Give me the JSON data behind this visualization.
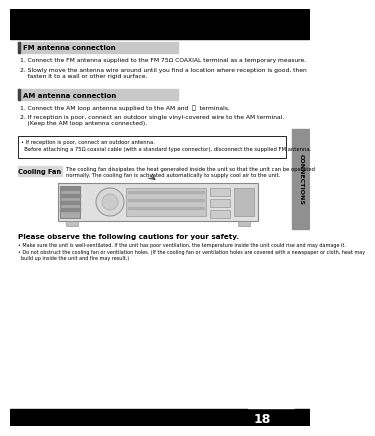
{
  "page_bg": "#ffffff",
  "right_tab_bg": "#909090",
  "right_tab_text": "CONNECTIONS",
  "right_tab_text_color": "#000000",
  "page_number": "18",
  "fm_section": {
    "header_text": "FM antenna connection",
    "header_bg": "#c8c8c8",
    "header_text_color": "#000000",
    "accent_color": "#404040",
    "item1": "1. Connect the FM antenna supplied to the FM 75Ω COAXIAL terminal as a temporary measure.",
    "item2a": "2. Slowly move the antenna wire around until you find a location where reception is good, then",
    "item2b": "    fasten it to a wall or other rigid surface."
  },
  "am_section": {
    "header_text": "AM antenna connection",
    "header_bg": "#c8c8c8",
    "header_text_color": "#000000",
    "accent_color": "#404040",
    "item1": "1. Connect the AM loop antenna supplied to the AM and  ⌵  terminals.",
    "item2a": "2. If reception is poor, connect an outdoor single vinyl-covered wire to the AM terminal.",
    "item2b": "    (Keep the AM loop antenna connected)."
  },
  "note_box": {
    "line1": "• If reception is poor, connect an outdoor antenna.",
    "line2": "  Before attaching a 75Ω coaxial cable (with a standard type connector), disconnect the supplied FM antenna.",
    "border_color": "#000000",
    "bg": "#ffffff"
  },
  "cooling_fan": {
    "label": "Cooling Fan",
    "label_bg": "#d8d8d8",
    "text1": "The cooling fan dissipates the heat generated inside the unit so that the unit can be operated",
    "text2": "normally. The cooling fan is activated automatically to supply cool air to the unit."
  },
  "cautions_title": "Please observe the following cautions for your safety.",
  "caution1": "• Make sure the unit is well-ventilated. If the unit has poor ventilation, the temperature inside the unit could rise and may damage it.",
  "caution2a": "• Do not obstruct the cooling fan or ventilation holes. (If the cooling fan or ventilation holes are covered with a newspaper or cloth, heat may",
  "caution2b": "  build up inside the unit and fire may result.)"
}
